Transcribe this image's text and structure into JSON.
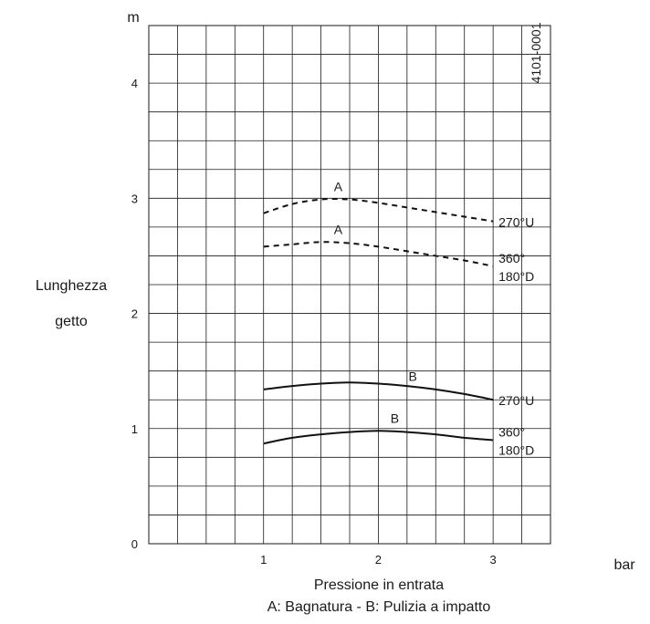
{
  "chart_data": {
    "type": "line",
    "title": "",
    "xlabel": "Pressione in entrata",
    "x_unit": "bar",
    "ylabel_lines": [
      "Lunghezza",
      "getto"
    ],
    "y_unit": "m",
    "legend_text": "A: Bagnatura - B: Pulizia a impatto",
    "code": "4101-0001",
    "xlim": [
      0,
      3.5
    ],
    "ylim": [
      0,
      4.5
    ],
    "grid": true,
    "x_ticks": [
      1,
      2,
      3
    ],
    "y_ticks": [
      0,
      1,
      2,
      3,
      4
    ],
    "series": [
      {
        "curve_label": "A",
        "end_label": [
          "270°U"
        ],
        "style": "dashed",
        "x": [
          1,
          1.25,
          1.5,
          1.75,
          2,
          2.25,
          2.5,
          2.75,
          3
        ],
        "y": [
          2.87,
          2.95,
          2.99,
          2.99,
          2.96,
          2.92,
          2.88,
          2.84,
          2.8
        ]
      },
      {
        "curve_label": "A",
        "end_label": [
          "360°",
          "180°D"
        ],
        "style": "dashed",
        "x": [
          1,
          1.25,
          1.5,
          1.75,
          2,
          2.25,
          2.5,
          2.75,
          3
        ],
        "y": [
          2.58,
          2.6,
          2.62,
          2.61,
          2.58,
          2.54,
          2.5,
          2.46,
          2.41
        ]
      },
      {
        "curve_label": "B",
        "end_label": [
          "270°U"
        ],
        "style": "solid",
        "x": [
          1,
          1.25,
          1.5,
          1.75,
          2,
          2.25,
          2.5,
          2.75,
          3
        ],
        "y": [
          1.34,
          1.37,
          1.39,
          1.4,
          1.39,
          1.37,
          1.34,
          1.3,
          1.25
        ]
      },
      {
        "curve_label": "B",
        "end_label": [
          "360°",
          "180°D"
        ],
        "style": "solid",
        "x": [
          1,
          1.25,
          1.5,
          1.75,
          2,
          2.25,
          2.5,
          2.75,
          3
        ],
        "y": [
          0.87,
          0.92,
          0.95,
          0.97,
          0.98,
          0.97,
          0.95,
          0.92,
          0.9
        ]
      }
    ]
  }
}
